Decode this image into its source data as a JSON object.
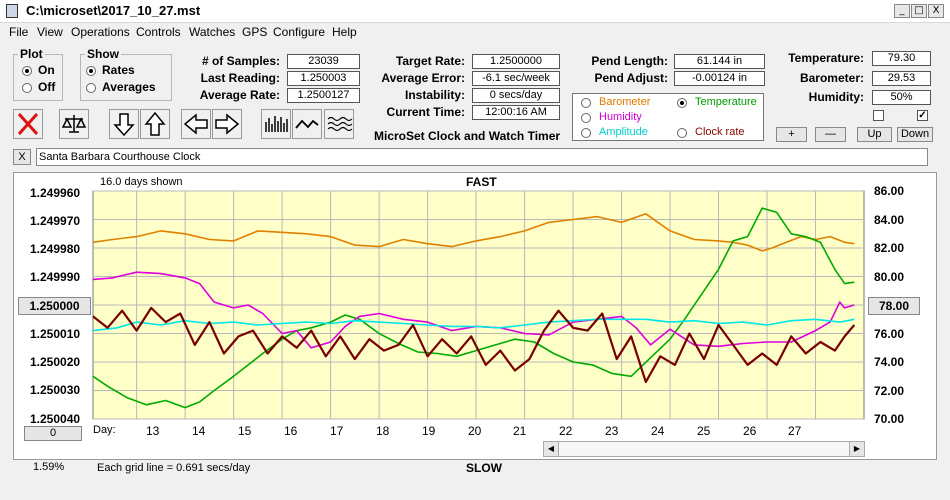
{
  "window": {
    "title": "C:\\microset\\2017_10_27.mst",
    "min": "_",
    "max": "□",
    "close": "X"
  },
  "menu": [
    "File",
    "View",
    "Operations",
    "Controls",
    "Watches",
    "GPS",
    "Configure",
    "Help"
  ],
  "plot_group": {
    "label": "Plot",
    "options": [
      {
        "label": "On",
        "selected": true
      },
      {
        "label": "Off",
        "selected": false
      }
    ]
  },
  "show_group": {
    "label": "Show",
    "options": [
      {
        "label": "Rates",
        "selected": true
      },
      {
        "label": "Averages",
        "selected": false
      }
    ]
  },
  "stats": {
    "samples_label": "# of Samples:",
    "samples": "23039",
    "last_label": "Last Reading:",
    "last": "1.250003",
    "avg_label": "Average Rate:",
    "avg": "1.2500127"
  },
  "target": {
    "target_label": "Target Rate:",
    "target": "1.2500000",
    "error_label": "Average Error:",
    "error": "-6.1 sec/week",
    "instab_label": "Instability:",
    "instab": "0 secs/day",
    "time_label": "Current Time:",
    "time": "12:00:16 AM"
  },
  "product_name": "MicroSet Clock and Watch Timer",
  "pend": {
    "length_label": "Pend Length:",
    "length": "61.144 in",
    "adjust_label": "Pend Adjust:",
    "adjust": "-0.00124 in"
  },
  "env": {
    "temp_label": "Temperature:",
    "temp": "79.30",
    "baro_label": "Barometer:",
    "baro": "29.53",
    "hum_label": "Humidity:",
    "hum": "50%",
    "check1": "",
    "check2": "✓"
  },
  "sensors": [
    {
      "label": "Barometer",
      "color": "#e07800",
      "selected": false
    },
    {
      "label": "Temperature",
      "color": "#009900",
      "selected": true
    },
    {
      "label": "Humidity",
      "color": "#cc00cc",
      "selected": false
    },
    {
      "label": "Clock rate",
      "color": "#8b0000",
      "selected": false
    },
    {
      "label": "Amplitude",
      "color": "#00cccc",
      "selected": false
    }
  ],
  "adjust_buttons": [
    "+",
    "—",
    "Up",
    "Down"
  ],
  "toolbar_icons": [
    "clear-icon",
    "balance-icon",
    "arrow-down-icon",
    "arrow-up-icon",
    "arrow-left-icon",
    "arrow-right-icon",
    "bar-graph-icon",
    "line-graph-icon",
    "wave-graph-icon"
  ],
  "description": {
    "close": "X",
    "text": "Santa Barbara Courthouse Clock"
  },
  "chart_data": {
    "type": "line",
    "top_label": "FAST",
    "bottom_label": "SLOW",
    "days_shown": "16.0 days shown",
    "grid_note": "Each grid line = 0.691 secs/day",
    "percent": "1.59%",
    "left_axis": {
      "ticks": [
        "1.249960",
        "1.249970",
        "1.249980",
        "1.249990",
        "1.250000",
        "1.250010",
        "1.250020",
        "1.250030",
        "1.250040"
      ],
      "center_button": "1.250000",
      "bottom_button": "0"
    },
    "right_axis": {
      "ticks": [
        "86.00",
        "84.00",
        "82.00",
        "80.00",
        "78.00",
        "76.00",
        "74.00",
        "72.00",
        "70.00"
      ],
      "center_button": "78.00"
    },
    "x_axis": {
      "prefix": "Day:",
      "days": [
        "13",
        "14",
        "15",
        "16",
        "17",
        "18",
        "19",
        "20",
        "21",
        "22",
        "23",
        "24",
        "25",
        "26",
        "27"
      ],
      "range": [
        12.1,
        28.0
      ]
    },
    "series": [
      {
        "color": "#e08000",
        "x": [
          12.1,
          12.5,
          13,
          13.5,
          14,
          14.5,
          15,
          15.5,
          16,
          16.5,
          17,
          17.5,
          18,
          18.5,
          19,
          19.5,
          20,
          20.5,
          21,
          21.5,
          22,
          22.5,
          23,
          23.5,
          24,
          24.5,
          25,
          25.3,
          25.6,
          25.9,
          26.1,
          26.4,
          26.7,
          27,
          27.3,
          27.6,
          27.8
        ],
        "y": [
          82.4,
          82.6,
          82.8,
          83.2,
          83.0,
          82.6,
          82.5,
          83.2,
          83.1,
          83.0,
          82.8,
          82.2,
          82.1,
          82.6,
          82.3,
          82.1,
          82.5,
          82.8,
          83.2,
          83.8,
          84.0,
          84.2,
          83.8,
          84.4,
          83.2,
          82.6,
          82.5,
          82.4,
          82.2,
          81.8,
          82.0,
          82.4,
          82.8,
          82.6,
          82.8,
          82.4,
          82.3
        ]
      },
      {
        "color": "#00aa00",
        "x": [
          12.1,
          12.4,
          12.8,
          13.2,
          13.6,
          14.0,
          14.3,
          14.6,
          15.0,
          15.3,
          15.6,
          16.0,
          16.3,
          16.6,
          17.0,
          17.3,
          17.6,
          18.0,
          18.4,
          18.8,
          19.2,
          19.6,
          20.0,
          20.4,
          20.8,
          21.2,
          21.6,
          22.0,
          22.4,
          22.8,
          23.2,
          23.6,
          24.0,
          24.3,
          24.6,
          25.0,
          25.3,
          25.6,
          25.9,
          26.2,
          26.5,
          26.8,
          27.1,
          27.4,
          27.6,
          27.8
        ],
        "y": [
          73.0,
          72.3,
          71.5,
          71.0,
          71.3,
          70.8,
          71.2,
          72.0,
          73.0,
          73.8,
          74.6,
          75.6,
          76.2,
          76.4,
          76.8,
          77.3,
          77.0,
          76.0,
          75.3,
          74.7,
          74.6,
          74.4,
          74.8,
          75.2,
          75.6,
          75.4,
          74.6,
          74.0,
          73.8,
          73.2,
          73.0,
          74.3,
          75.6,
          77.0,
          78.5,
          80.5,
          82.5,
          82.8,
          84.8,
          84.5,
          83.0,
          82.8,
          82.4,
          80.5,
          79.5,
          79.6
        ]
      },
      {
        "color": "#dd00dd",
        "x": [
          12.1,
          12.5,
          13,
          13.5,
          14,
          14.3,
          14.6,
          15,
          15.3,
          15.6,
          16,
          16.3,
          16.6,
          17,
          17.3,
          17.6,
          18,
          18.5,
          19,
          19.5,
          20,
          20.5,
          21,
          21.5,
          22,
          22.5,
          23,
          23.3,
          23.6,
          24,
          24.5,
          25,
          25.5,
          26,
          26.5,
          27,
          27.3,
          27.5,
          27.6,
          27.8
        ],
        "y": [
          79.8,
          79.9,
          80.3,
          80.2,
          79.9,
          79.5,
          78.2,
          77.8,
          78.0,
          77.4,
          76.0,
          76.2,
          75.0,
          75.4,
          76.5,
          77.2,
          77.4,
          77.0,
          76.8,
          76.2,
          76.5,
          76.4,
          76.0,
          75.9,
          76.8,
          77.0,
          77.2,
          76.4,
          75.2,
          76.3,
          75.2,
          75.1,
          75.3,
          75.4,
          75.4,
          76.2,
          76.8,
          78.2,
          77.8,
          78.0
        ]
      },
      {
        "color": "#00e5e5",
        "x": [
          12.1,
          12.6,
          13,
          13.5,
          14,
          14.5,
          15,
          15.5,
          16,
          16.5,
          17,
          17.5,
          18,
          18.5,
          19,
          19.5,
          20,
          20.5,
          21,
          21.5,
          22,
          22.5,
          23,
          23.5,
          24,
          24.5,
          25,
          25.5,
          26,
          26.5,
          27,
          27.5,
          27.8
        ],
        "y": [
          76.2,
          76.4,
          76.8,
          76.6,
          76.9,
          76.7,
          76.8,
          76.6,
          76.7,
          76.8,
          76.7,
          76.9,
          76.8,
          76.7,
          76.6,
          76.5,
          76.5,
          76.4,
          76.6,
          76.8,
          76.9,
          77.0,
          77.0,
          77.0,
          76.8,
          76.9,
          76.7,
          76.8,
          76.6,
          76.9,
          77.0,
          76.8,
          77.0
        ]
      },
      {
        "color": "#7a0000",
        "x": [
          12.1,
          12.4,
          12.7,
          13.0,
          13.3,
          13.6,
          13.9,
          14.2,
          14.5,
          14.8,
          15.1,
          15.4,
          15.7,
          16.0,
          16.3,
          16.6,
          16.9,
          17.2,
          17.5,
          17.8,
          18.1,
          18.4,
          18.7,
          19.0,
          19.3,
          19.6,
          19.9,
          20.2,
          20.5,
          20.8,
          21.1,
          21.4,
          21.7,
          22.0,
          22.3,
          22.6,
          22.9,
          23.2,
          23.5,
          23.8,
          24.1,
          24.4,
          24.7,
          25.0,
          25.3,
          25.6,
          25.9,
          26.2,
          26.5,
          26.8,
          27.1,
          27.4,
          27.6,
          27.8
        ],
        "y": [
          77.2,
          76.4,
          77.6,
          76.2,
          77.8,
          76.8,
          77.4,
          75.2,
          76.8,
          74.6,
          75.8,
          76.2,
          74.6,
          75.8,
          75.0,
          76.2,
          74.4,
          75.8,
          74.2,
          75.6,
          74.8,
          75.2,
          76.6,
          74.4,
          75.6,
          74.6,
          75.8,
          73.8,
          74.8,
          73.4,
          74.2,
          76.2,
          77.6,
          76.4,
          76.2,
          77.4,
          74.2,
          75.8,
          72.6,
          74.4,
          73.8,
          76.0,
          74.2,
          76.6,
          75.2,
          73.8,
          74.6,
          73.8,
          75.8,
          74.6,
          75.4,
          74.8,
          75.8,
          76.6
        ]
      }
    ]
  }
}
